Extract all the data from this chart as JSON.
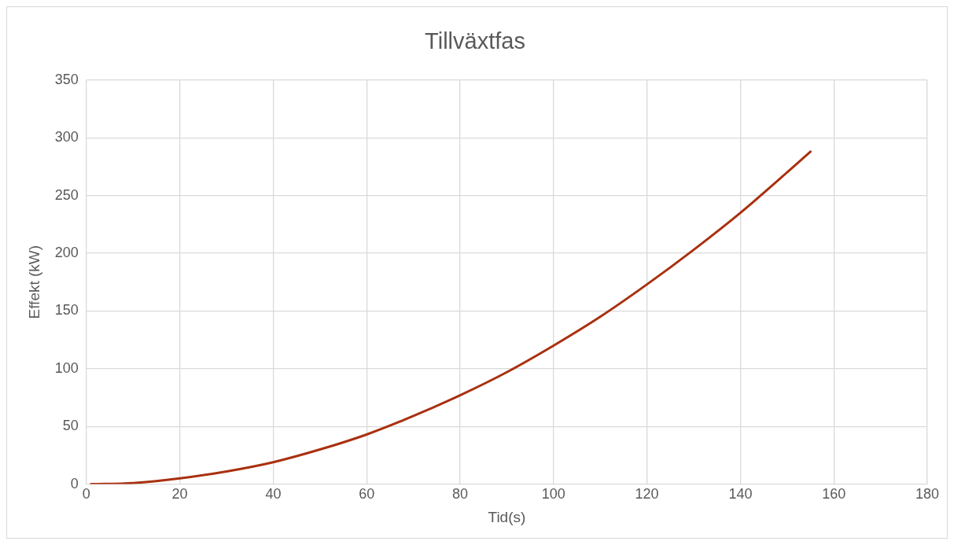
{
  "chart_data": {
    "type": "line",
    "title": "Tillväxtfas",
    "xlabel": "Tid(s)",
    "ylabel": "Effekt (kW)",
    "x": [
      1,
      10,
      20,
      30,
      40,
      50,
      60,
      70,
      80,
      90,
      100,
      110,
      120,
      130,
      140,
      150,
      155
    ],
    "series": [
      {
        "color": "#a9300f",
        "values": [
          0,
          1,
          5,
          11,
          19,
          30,
          43,
          59,
          77,
          97,
          120,
          145,
          173,
          203,
          235,
          270,
          288
        ]
      }
    ],
    "xlim": [
      0,
      180
    ],
    "xticks": [
      0,
      20,
      40,
      60,
      80,
      100,
      120,
      140,
      160,
      180
    ],
    "ylim": [
      0,
      350
    ],
    "yticks": [
      0,
      50,
      100,
      150,
      200,
      250,
      300,
      350
    ],
    "grid": true,
    "marker": "none",
    "line_style": "solid"
  }
}
